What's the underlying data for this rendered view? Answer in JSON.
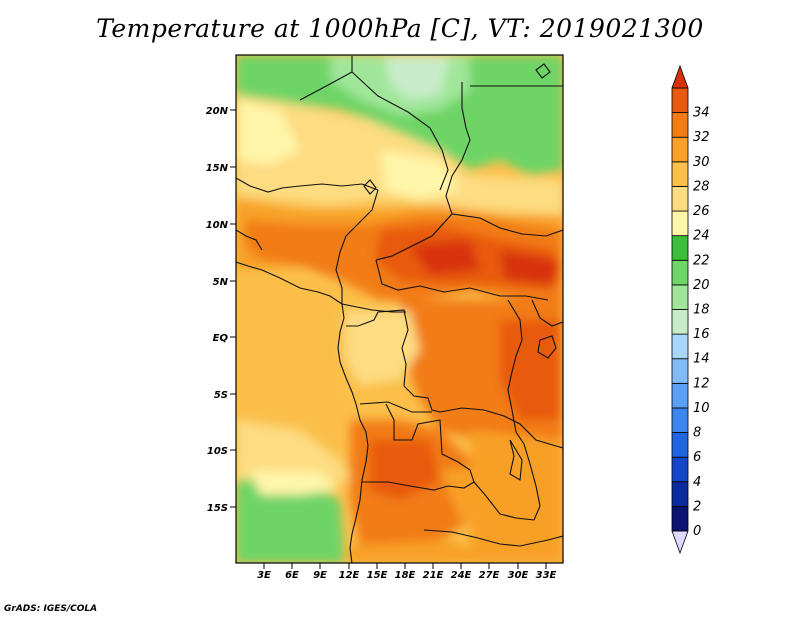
{
  "title": "Temperature at 1000hPa [C], VT: 2019021300",
  "credit": "GrADS: IGES/COLA",
  "map": {
    "lat_ticks": [
      "20N",
      "15N",
      "10N",
      "5N",
      "EQ",
      "5S",
      "10S",
      "15S"
    ],
    "lon_ticks": [
      "3E",
      "6E",
      "9E",
      "12E",
      "15E",
      "18E",
      "21E",
      "24E",
      "27E",
      "30E",
      "33E"
    ]
  },
  "colorbar": {
    "labels": [
      "0",
      "2",
      "4",
      "6",
      "8",
      "10",
      "12",
      "14",
      "16",
      "18",
      "20",
      "22",
      "24",
      "26",
      "28",
      "30",
      "32",
      "34"
    ],
    "colors": [
      "#ddd9ff",
      "#0a1470",
      "#0c2aa0",
      "#1646c8",
      "#2066e0",
      "#3a86ee",
      "#5aa0f4",
      "#82bcf8",
      "#a8d6fa",
      "#c8ecc8",
      "#a0e69a",
      "#6ed466",
      "#3cbe3c",
      "#fff5a8",
      "#fddc82",
      "#fbbf4a",
      "#f8a028",
      "#f27c14",
      "#e85a10",
      "#d8300c"
    ]
  }
}
